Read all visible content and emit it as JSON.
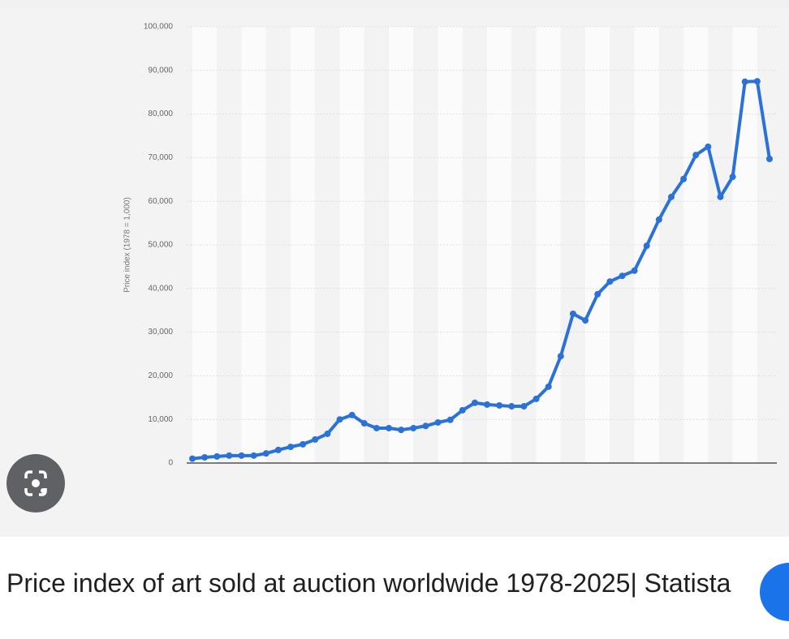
{
  "chart_data": {
    "type": "line",
    "y_label": "Price index (1978 = 1,000)",
    "categories": [
      null,
      null,
      null,
      null,
      null,
      null,
      null,
      null,
      null,
      null,
      null,
      null,
      null,
      null,
      null,
      null,
      null,
      null,
      null,
      null,
      null,
      null,
      null,
      null,
      null,
      null,
      null,
      null,
      null,
      null,
      null,
      null,
      null,
      null,
      null,
      null,
      null,
      null,
      null,
      null,
      null,
      null,
      null,
      null,
      null,
      null,
      null,
      null
    ],
    "series": [
      {
        "color": "#2a72d8",
        "values": [
          1000,
          1300,
          1500,
          1700,
          1700,
          1700,
          2200,
          3000,
          3700,
          4300,
          5400,
          6700,
          10000,
          11000,
          9100,
          8000,
          8000,
          7600,
          8000,
          8500,
          9300,
          9900,
          12100,
          13800,
          13400,
          13200,
          13000,
          13000,
          14700,
          17500,
          24500,
          34200,
          32700,
          38700,
          41600,
          42900,
          44100,
          49800,
          55800,
          61000,
          65100,
          70600,
          72500,
          61000,
          65600,
          87400,
          87500,
          69700
        ]
      }
    ],
    "ylim": [
      0,
      100000
    ],
    "yticks": [
      0,
      {
        "value": 10000,
        "label": "10,000"
      },
      {
        "value": 20000,
        "label": "20,000"
      },
      {
        "value": 30000,
        "label": "30,000"
      },
      {
        "value": 40000,
        "label": "40,000"
      },
      {
        "value": 50000,
        "label": "50,000"
      },
      {
        "value": 60000,
        "label": "60,000"
      },
      {
        "value": 70000,
        "label": "70,000"
      },
      {
        "value": 80000,
        "label": "80,000"
      },
      {
        "value": 90000,
        "label": "90,000"
      },
      {
        "value": 100000,
        "label": "100,000"
      }
    ],
    "grid": true
  },
  "caption": "Price index of art sold at auction worldwide 1978-2025| Statista"
}
